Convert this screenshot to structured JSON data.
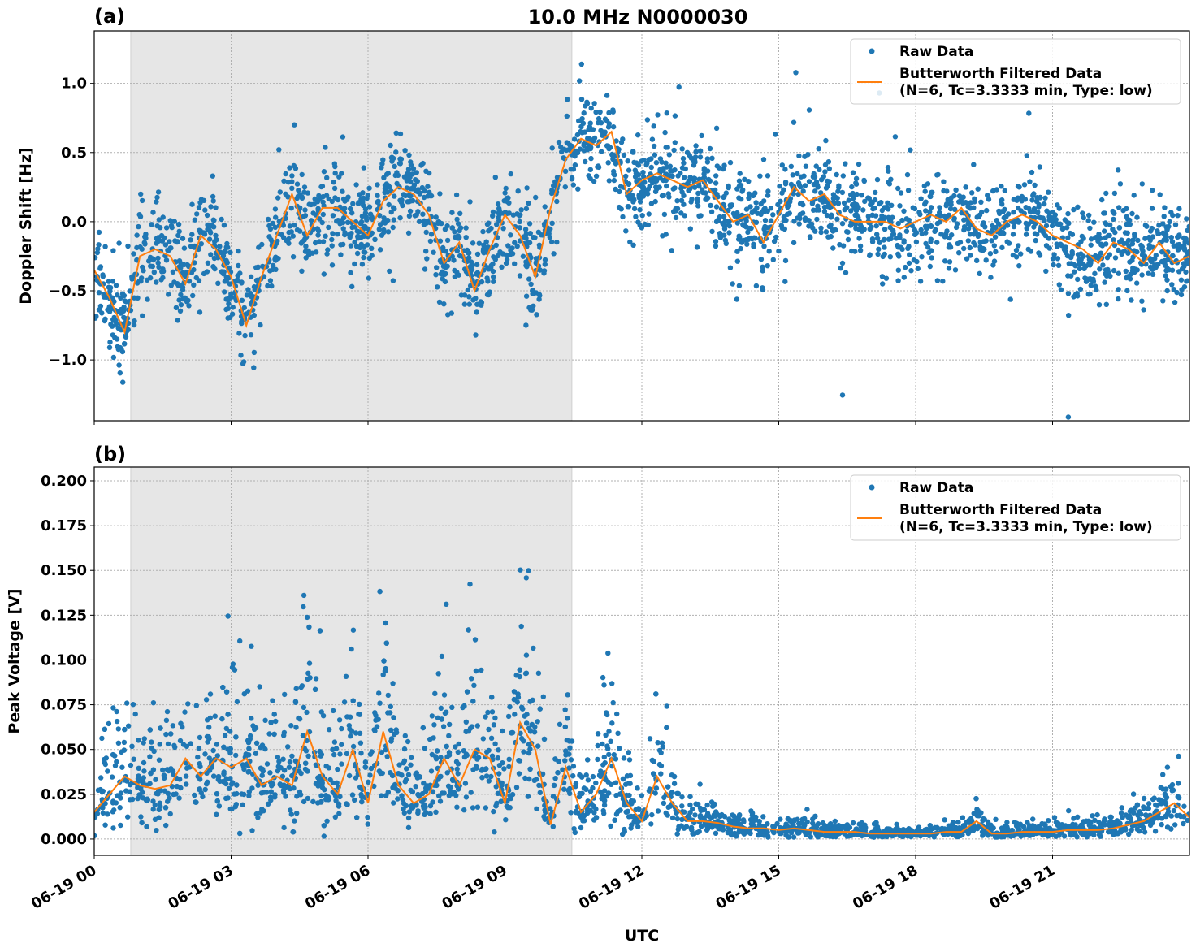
{
  "title": "10.0 MHz N0000030",
  "xlabel": "UTC",
  "x_ticks": [
    "06-19 00",
    "06-19 03",
    "06-19 06",
    "06-19 09",
    "06-19 12",
    "06-19 15",
    "06-19 18",
    "06-19 21"
  ],
  "colors": {
    "raw": "#1f77b4",
    "filtered": "#ff7f0e",
    "shade": "#e6e6e6"
  },
  "legend": {
    "raw": "Raw Data",
    "filtered_line1": "Butterworth Filtered Data",
    "filtered_line2": "(N=6, Tc=3.3333 min, Type: low)",
    "placement": "top-right"
  },
  "chart_data": [
    {
      "panel_label": "(a)",
      "type": "scatter+line",
      "ylabel": "Doppler Shift [Hz]",
      "y_ticks": [
        "1.0",
        "0.5",
        "0.0",
        "−0.5",
        "−1.0"
      ],
      "ylim": [
        -1.44,
        1.38
      ],
      "xlim": [
        "06-19 00:00",
        "06-20 00:00"
      ],
      "grid": true,
      "shaded_x_range": [
        "06-19 00:48",
        "06-19 10:28"
      ],
      "filtered_hours_step": "20 min",
      "filtered": [
        -0.35,
        -0.55,
        -0.8,
        -0.25,
        -0.2,
        -0.25,
        -0.45,
        -0.1,
        -0.2,
        -0.4,
        -0.75,
        -0.4,
        -0.1,
        0.2,
        -0.1,
        0.1,
        0.1,
        0.0,
        -0.1,
        0.15,
        0.25,
        0.2,
        0.05,
        -0.3,
        -0.15,
        -0.5,
        -0.2,
        0.05,
        -0.1,
        -0.4,
        0.1,
        0.45,
        0.6,
        0.55,
        0.65,
        0.2,
        0.3,
        0.35,
        0.3,
        0.25,
        0.3,
        0.15,
        0.0,
        0.05,
        -0.15,
        0.05,
        0.25,
        0.15,
        0.2,
        0.05,
        0.0,
        0.0,
        0.0,
        -0.05,
        0.0,
        0.05,
        0.0,
        0.1,
        -0.05,
        -0.1,
        0.0,
        0.05,
        0.0,
        -0.1,
        -0.15,
        -0.2,
        -0.3,
        -0.15,
        -0.2,
        -0.3,
        -0.15,
        -0.3,
        -0.25
      ]
    },
    {
      "panel_label": "(b)",
      "type": "scatter+line",
      "ylabel": "Peak Voltage [V]",
      "y_ticks": [
        "0.200",
        "0.175",
        "0.150",
        "0.125",
        "0.100",
        "0.075",
        "0.050",
        "0.025",
        "0.000"
      ],
      "ylim": [
        -0.0091,
        0.2077
      ],
      "xlim": [
        "06-19 00:00",
        "06-20 00:00"
      ],
      "grid": true,
      "shaded_x_range": [
        "06-19 00:48",
        "06-19 10:28"
      ],
      "filtered_hours_step": "20 min",
      "filtered": [
        0.015,
        0.025,
        0.035,
        0.03,
        0.028,
        0.03,
        0.045,
        0.035,
        0.045,
        0.04,
        0.045,
        0.03,
        0.035,
        0.03,
        0.06,
        0.035,
        0.025,
        0.05,
        0.02,
        0.06,
        0.03,
        0.02,
        0.025,
        0.045,
        0.03,
        0.05,
        0.045,
        0.02,
        0.065,
        0.05,
        0.008,
        0.04,
        0.015,
        0.025,
        0.045,
        0.02,
        0.01,
        0.035,
        0.02,
        0.01,
        0.01,
        0.009,
        0.007,
        0.006,
        0.006,
        0.005,
        0.006,
        0.005,
        0.004,
        0.004,
        0.004,
        0.003,
        0.003,
        0.003,
        0.003,
        0.003,
        0.004,
        0.004,
        0.01,
        0.003,
        0.003,
        0.004,
        0.004,
        0.004,
        0.005,
        0.005,
        0.005,
        0.006,
        0.008,
        0.01,
        0.015,
        0.02,
        0.012
      ]
    }
  ]
}
